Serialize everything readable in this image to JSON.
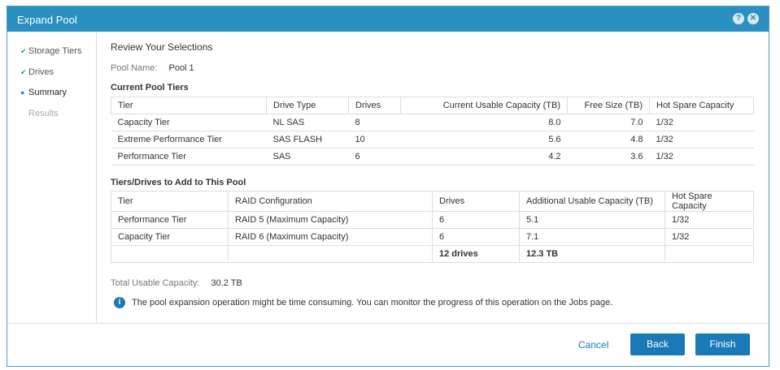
{
  "dialog": {
    "title": "Expand Pool",
    "help_icon": "help-icon",
    "close_icon": "close-icon"
  },
  "steps": [
    {
      "label": "Storage Tiers",
      "state": "done"
    },
    {
      "label": "Drives",
      "state": "done"
    },
    {
      "label": "Summary",
      "state": "current"
    },
    {
      "label": "Results",
      "state": "pending"
    }
  ],
  "review": {
    "heading": "Review Your Selections",
    "pool_name_label": "Pool Name:",
    "pool_name": "Pool 1"
  },
  "current": {
    "heading": "Current Pool Tiers",
    "columns": [
      "Tier",
      "Drive Type",
      "Drives",
      "Current Usable Capacity (TB)",
      "Free Size (TB)",
      "Hot Spare Capacity"
    ],
    "rows": [
      [
        "Capacity Tier",
        "NL SAS",
        "8",
        "8.0",
        "7.0",
        "1/32"
      ],
      [
        "Extreme Performance Tier",
        "SAS FLASH",
        "10",
        "5.6",
        "4.8",
        "1/32"
      ],
      [
        "Performance Tier",
        "SAS",
        "6",
        "4.2",
        "3.6",
        "1/32"
      ]
    ]
  },
  "add": {
    "heading": "Tiers/Drives to Add to This Pool",
    "columns": [
      "Tier",
      "RAID Configuration",
      "Drives",
      "Additional Usable Capacity (TB)",
      "Hot Spare Capacity"
    ],
    "rows": [
      [
        "Performance Tier",
        "RAID 5 (Maximum Capacity)",
        "6",
        "5.1",
        "1/32"
      ],
      [
        "Capacity Tier",
        "RAID 6 (Maximum Capacity)",
        "6",
        "7.1",
        "1/32"
      ]
    ],
    "totals": {
      "drives": "12 drives",
      "capacity": "12.3 TB"
    }
  },
  "total": {
    "label": "Total Usable Capacity:",
    "value": "30.2 TB"
  },
  "info": "The pool expansion operation might be time consuming. You can monitor the progress of this operation on the Jobs page.",
  "buttons": {
    "cancel": "Cancel",
    "back": "Back",
    "finish": "Finish"
  },
  "colors": {
    "accent": "#2a8fc1",
    "button": "#1a7ab8",
    "check": "#2e9e3e"
  }
}
